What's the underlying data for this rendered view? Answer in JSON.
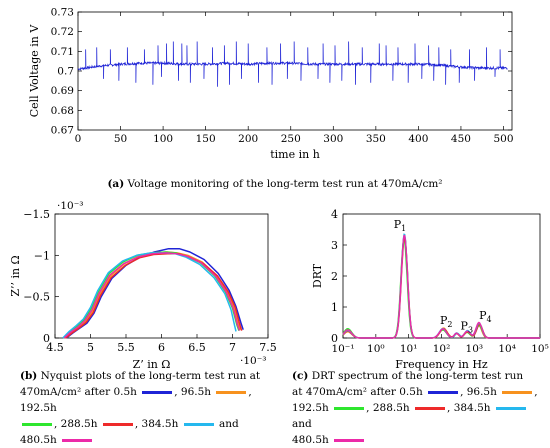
{
  "colors": {
    "blue": "#1f24d6",
    "orange": "#f7921e",
    "green": "#2ee62e",
    "red": "#ee2a2a",
    "cyan": "#25b8ee",
    "magenta": "#ec2aa8"
  },
  "chart_data": [
    {
      "type": "line",
      "id": "a",
      "caption": {
        "tag": "(a)",
        "text": "Voltage monitoring of the long-term test run at 470mA/cm²"
      },
      "xlabel": "time in h",
      "ylabel": "Cell Voltage in V",
      "xlim": [
        0,
        510
      ],
      "ylim": [
        0.67,
        0.73
      ],
      "xticks": [
        "0",
        "50",
        "100",
        "150",
        "200",
        "250",
        "300",
        "350",
        "400",
        "450",
        "500"
      ],
      "yticks": [
        "0.67",
        "0.68",
        "0.69",
        "0.7",
        "0.71",
        "0.72",
        "0.73"
      ],
      "grid": false,
      "series": [
        {
          "color": "blue",
          "baseline": {
            "x": [
              0,
              25,
              50,
              75,
              100,
              125,
              150,
              175,
              200,
              225,
              250,
              275,
              300,
              325,
              350,
              375,
              400,
              425,
              450,
              475,
              505
            ],
            "y": [
              0.701,
              0.7025,
              0.7035,
              0.704,
              0.704,
              0.7035,
              0.7035,
              0.704,
              0.7035,
              0.704,
              0.704,
              0.7035,
              0.7035,
              0.7035,
              0.7035,
              0.7035,
              0.7035,
              0.703,
              0.702,
              0.7015,
              0.7015
            ]
          },
          "spikes_up": [
            [
              9,
              0.711
            ],
            [
              22,
              0.712
            ],
            [
              38,
              0.711
            ],
            [
              58,
              0.712
            ],
            [
              78,
              0.711
            ],
            [
              94,
              0.713
            ],
            [
              104,
              0.714
            ],
            [
              112,
              0.715
            ],
            [
              122,
              0.714
            ],
            [
              128,
              0.713
            ],
            [
              140,
              0.715
            ],
            [
              158,
              0.712
            ],
            [
              172,
              0.713
            ],
            [
              186,
              0.715
            ],
            [
              200,
              0.714
            ],
            [
              222,
              0.712
            ],
            [
              238,
              0.714
            ],
            [
              254,
              0.715
            ],
            [
              270,
              0.712
            ],
            [
              288,
              0.714
            ],
            [
              302,
              0.713
            ],
            [
              318,
              0.715
            ],
            [
              334,
              0.712
            ],
            [
              354,
              0.714
            ],
            [
              362,
              0.713
            ],
            [
              376,
              0.712
            ],
            [
              396,
              0.714
            ],
            [
              412,
              0.713
            ],
            [
              424,
              0.712
            ],
            [
              438,
              0.711
            ],
            [
              460,
              0.711
            ],
            [
              480,
              0.712
            ],
            [
              496,
              0.711
            ]
          ],
          "spikes_down": [
            [
              30,
              0.696
            ],
            [
              48,
              0.695
            ],
            [
              68,
              0.694
            ],
            [
              88,
              0.693
            ],
            [
              98,
              0.697
            ],
            [
              118,
              0.695
            ],
            [
              132,
              0.694
            ],
            [
              148,
              0.696
            ],
            [
              164,
              0.692
            ],
            [
              178,
              0.693
            ],
            [
              192,
              0.696
            ],
            [
              212,
              0.694
            ],
            [
              228,
              0.693
            ],
            [
              246,
              0.696
            ],
            [
              262,
              0.695
            ],
            [
              282,
              0.696
            ],
            [
              296,
              0.694
            ],
            [
              310,
              0.695
            ],
            [
              326,
              0.693
            ],
            [
              344,
              0.694
            ],
            [
              370,
              0.695
            ],
            [
              388,
              0.694
            ],
            [
              404,
              0.696
            ],
            [
              418,
              0.695
            ],
            [
              432,
              0.693
            ],
            [
              448,
              0.694
            ],
            [
              466,
              0.695
            ],
            [
              490,
              0.697
            ]
          ]
        }
      ]
    },
    {
      "type": "line",
      "id": "b",
      "caption": {
        "tag": "(b)",
        "line1": "Nyquist plots of the long-term test run at",
        "line2a": "470mA/cm² after 0.5h",
        "line2b": ", 96.5h",
        "line2c": ", 192.5h",
        "line3a": ", 288.5h",
        "line3b": ", 384.5h",
        "line3c": "and",
        "line4": "480.5h"
      },
      "xlabel": "Z’ in Ω",
      "ylabel": "Z’’ in Ω",
      "xmultiplier": "·10⁻³",
      "ymultiplier": "·10⁻³",
      "xlim": [
        4.5,
        7.5
      ],
      "ylim": [
        -1.5,
        0
      ],
      "xticks": [
        "4.5",
        "5",
        "5.5",
        "6",
        "6.5",
        "7",
        "7.5"
      ],
      "yticks": [
        "−1.5",
        "−1",
        "−0.5",
        "0"
      ],
      "series": [
        {
          "name": "0.5h",
          "color": "blue",
          "x": [
            4.66,
            4.75,
            4.85,
            4.95,
            5.05,
            5.15,
            5.3,
            5.5,
            5.7,
            5.9,
            6.1,
            6.25,
            6.4,
            6.6,
            6.8,
            6.95,
            7.05,
            7.12,
            7.15
          ],
          "y": [
            0.0,
            -0.06,
            -0.12,
            -0.18,
            -0.3,
            -0.5,
            -0.72,
            -0.88,
            -0.98,
            -1.04,
            -1.08,
            -1.08,
            -1.04,
            -0.95,
            -0.78,
            -0.58,
            -0.38,
            -0.18,
            -0.1
          ]
        },
        {
          "name": "96.5h",
          "color": "orange",
          "x": [
            4.64,
            4.73,
            4.83,
            4.93,
            5.03,
            5.13,
            5.28,
            5.48,
            5.68,
            5.88,
            6.08,
            6.22,
            6.37,
            6.57,
            6.77,
            6.92,
            7.02,
            7.08,
            7.11
          ],
          "y": [
            0.0,
            -0.07,
            -0.13,
            -0.2,
            -0.33,
            -0.53,
            -0.75,
            -0.9,
            -0.99,
            -1.03,
            -1.04,
            -1.03,
            -1.0,
            -0.92,
            -0.76,
            -0.57,
            -0.37,
            -0.17,
            -0.1
          ]
        },
        {
          "name": "192.5h",
          "color": "green",
          "x": [
            4.62,
            4.71,
            4.81,
            4.91,
            5.01,
            5.11,
            5.26,
            5.46,
            5.66,
            5.86,
            6.06,
            6.2,
            6.35,
            6.55,
            6.75,
            6.9,
            7.0,
            7.06,
            7.09
          ],
          "y": [
            0.0,
            -0.08,
            -0.14,
            -0.22,
            -0.36,
            -0.56,
            -0.78,
            -0.92,
            -1.0,
            -1.03,
            -1.04,
            -1.03,
            -0.99,
            -0.91,
            -0.75,
            -0.56,
            -0.36,
            -0.16,
            -0.09
          ]
        },
        {
          "name": "288.5h",
          "color": "red",
          "x": [
            4.65,
            4.74,
            4.84,
            4.94,
            5.04,
            5.14,
            5.29,
            5.49,
            5.69,
            5.89,
            6.09,
            6.24,
            6.39,
            6.59,
            6.79,
            6.94,
            7.04,
            7.1,
            7.13
          ],
          "y": [
            0.0,
            -0.06,
            -0.12,
            -0.19,
            -0.31,
            -0.51,
            -0.73,
            -0.88,
            -0.97,
            -1.01,
            -1.02,
            -1.02,
            -0.98,
            -0.9,
            -0.75,
            -0.56,
            -0.37,
            -0.17,
            -0.09
          ]
        },
        {
          "name": "384.5h",
          "color": "cyan",
          "x": [
            4.61,
            4.7,
            4.8,
            4.9,
            5.0,
            5.1,
            5.25,
            5.45,
            5.65,
            5.85,
            6.05,
            6.19,
            6.34,
            6.54,
            6.74,
            6.89,
            6.98,
            7.03,
            7.05
          ],
          "y": [
            0.0,
            -0.08,
            -0.15,
            -0.23,
            -0.37,
            -0.57,
            -0.79,
            -0.93,
            -1.0,
            -1.03,
            -1.03,
            -1.02,
            -0.98,
            -0.89,
            -0.73,
            -0.54,
            -0.34,
            -0.15,
            -0.08
          ]
        },
        {
          "name": "480.5h",
          "color": "magenta",
          "x": [
            4.63,
            4.72,
            4.82,
            4.92,
            5.02,
            5.12,
            5.27,
            5.47,
            5.67,
            5.87,
            6.07,
            6.21,
            6.36,
            6.56,
            6.76,
            6.91,
            7.01,
            7.07,
            7.1
          ],
          "y": [
            0.0,
            -0.07,
            -0.13,
            -0.21,
            -0.34,
            -0.54,
            -0.76,
            -0.9,
            -0.98,
            -1.02,
            -1.03,
            -1.02,
            -0.99,
            -0.91,
            -0.75,
            -0.56,
            -0.36,
            -0.16,
            -0.09
          ]
        }
      ]
    },
    {
      "type": "line",
      "id": "c",
      "caption": {
        "tag": "(c)",
        "line1": "DRT spectrum of the long-term test run",
        "line2a": "at 470mA/cm² after 0.5h",
        "line2b": ", 96.5h",
        "line3a": "192.5h",
        "line3b": ", 288.5h",
        "line3c": ", 384.5h",
        "line3d": "and",
        "line4": "480.5h"
      },
      "xlabel": "Frequency in Hz",
      "ylabel": "DRT",
      "xscale": "log",
      "xlim": [
        0.1,
        100000
      ],
      "ylim": [
        0,
        4
      ],
      "xticks": [
        "10⁻¹",
        "10⁰",
        "10¹",
        "10²",
        "10³",
        "10⁴",
        "10⁵"
      ],
      "yticks": [
        "0",
        "1",
        "2",
        "3",
        "4"
      ],
      "peak_labels": [
        {
          "text": "P",
          "sub": "1",
          "f": 3.5,
          "v": 3.55
        },
        {
          "text": "P",
          "sub": "2",
          "f": 90,
          "v": 0.45
        },
        {
          "text": "P",
          "sub": "3",
          "f": 380,
          "v": 0.28
        },
        {
          "text": "P",
          "sub": "4",
          "f": 1400,
          "v": 0.62
        }
      ],
      "series": [
        {
          "name": "0.5h",
          "color": "blue",
          "peaks": [
            [
              0.14,
              0.22,
              0.12
            ],
            [
              7.4,
              3.3,
              0.095
            ],
            [
              110,
              0.28,
              0.11
            ],
            [
              290,
              0.16,
              0.07
            ],
            [
              620,
              0.22,
              0.09
            ],
            [
              1400,
              0.46,
              0.09
            ]
          ]
        },
        {
          "name": "96.5h",
          "color": "orange",
          "peaks": [
            [
              0.14,
              0.2,
              0.12
            ],
            [
              7.3,
              3.22,
              0.095
            ],
            [
              115,
              0.32,
              0.11
            ],
            [
              290,
              0.14,
              0.07
            ],
            [
              600,
              0.2,
              0.09
            ],
            [
              1350,
              0.42,
              0.09
            ]
          ]
        },
        {
          "name": "192.5h",
          "color": "green",
          "peaks": [
            [
              0.14,
              0.3,
              0.12
            ],
            [
              7.2,
              3.2,
              0.095
            ],
            [
              110,
              0.26,
              0.11
            ],
            [
              300,
              0.15,
              0.07
            ],
            [
              600,
              0.18,
              0.09
            ],
            [
              1400,
              0.4,
              0.09
            ]
          ]
        },
        {
          "name": "288.5h",
          "color": "red",
          "peaks": [
            [
              0.14,
              0.22,
              0.12
            ],
            [
              7.5,
              3.26,
              0.095
            ],
            [
              115,
              0.3,
              0.11
            ],
            [
              290,
              0.14,
              0.07
            ],
            [
              620,
              0.2,
              0.09
            ],
            [
              1450,
              0.44,
              0.09
            ]
          ]
        },
        {
          "name": "384.5h",
          "color": "cyan",
          "peaks": [
            [
              0.14,
              0.24,
              0.12
            ],
            [
              7.4,
              3.36,
              0.095
            ],
            [
              110,
              0.3,
              0.11
            ],
            [
              300,
              0.15,
              0.07
            ],
            [
              620,
              0.24,
              0.09
            ],
            [
              1400,
              0.48,
              0.09
            ]
          ]
        },
        {
          "name": "480.5h",
          "color": "magenta",
          "peaks": [
            [
              0.14,
              0.26,
              0.12
            ],
            [
              7.4,
              3.32,
              0.095
            ],
            [
              110,
              0.29,
              0.11
            ],
            [
              290,
              0.15,
              0.07
            ],
            [
              610,
              0.22,
              0.09
            ],
            [
              1380,
              0.5,
              0.09
            ]
          ]
        }
      ]
    }
  ]
}
